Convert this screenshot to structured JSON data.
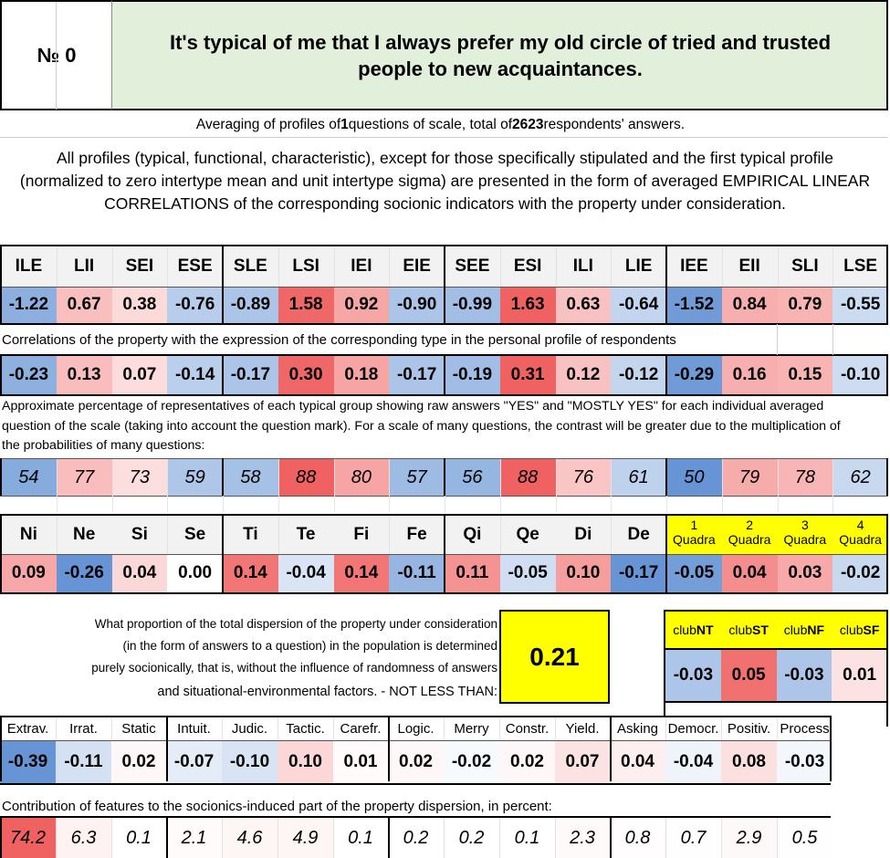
{
  "header": {
    "number_label": "№ 0",
    "question": "It's typical of me that I always prefer my old circle of tried and trusted people to new acquaintances."
  },
  "averaging": {
    "prefix": "Averaging of profiles of ",
    "questions": "1",
    "middle": " questions of scale, total of ",
    "respondents": "2623",
    "suffix": " respondents' answers."
  },
  "description": "All profiles (typical, functional, characteristic), except for those specifically stipulated and the first typical profile (normalized to zero intertype mean and unit intertype sigma) are presented in the form of averaged EMPIRICAL LINEAR CORRELATIONS of the corresponding socionic indicators with the property under consideration.",
  "types": {
    "labels": [
      "ILE",
      "LII",
      "SEI",
      "ESE",
      "SLE",
      "LSI",
      "IEI",
      "EIE",
      "SEE",
      "ESI",
      "ILI",
      "LIE",
      "IEE",
      "EII",
      "SLI",
      "LSE"
    ],
    "normalized": [
      "-1.22",
      "0.67",
      "0.38",
      "-0.76",
      "-0.89",
      "1.58",
      "0.92",
      "-0.90",
      "-0.99",
      "1.63",
      "0.63",
      "-0.64",
      "-1.52",
      "0.84",
      "0.79",
      "-0.55"
    ],
    "correlation_caption": "Correlations of the property with the expression of the corresponding type in the personal profile of respondents",
    "correlations": [
      "-0.23",
      "0.13",
      "0.07",
      "-0.14",
      "-0.17",
      "0.30",
      "0.18",
      "-0.17",
      "-0.19",
      "0.31",
      "0.12",
      "-0.12",
      "-0.29",
      "0.16",
      "0.15",
      "-0.10"
    ],
    "percent_caption": "Approximate percentage of representatives of each typical group showing raw answers \"YES\" and \"MOSTLY YES\" for each individual averaged question of the scale (taking into account the question mark). For a scale of many questions, the contrast will be greater due to the multiplication of the probabilities of many questions:",
    "percentages": [
      "54",
      "77",
      "73",
      "59",
      "58",
      "88",
      "80",
      "57",
      "56",
      "88",
      "76",
      "61",
      "50",
      "79",
      "78",
      "62"
    ]
  },
  "functions": {
    "labels": [
      "Ni",
      "Ne",
      "Si",
      "Se",
      "Ti",
      "Te",
      "Fi",
      "Fe",
      "Qi",
      "Qe",
      "Di",
      "De"
    ],
    "values": [
      "0.09",
      "-0.26",
      "0.04",
      "0.00",
      "0.14",
      "-0.04",
      "0.14",
      "-0.11",
      "0.11",
      "-0.05",
      "0.10",
      "-0.17"
    ]
  },
  "quadras": {
    "numbers": [
      "1",
      "2",
      "3",
      "4"
    ],
    "word": "Quadra",
    "values": [
      "-0.05",
      "0.04",
      "0.03",
      "-0.02"
    ]
  },
  "dispersion": {
    "text_lines": [
      "What proportion of the total dispersion of the property under consideration",
      "(in the form of answers to a question) in the population is determined",
      "purely socionically, that is, without the influence of randomness of answers",
      "and situational-environmental factors. - NOT LESS THAN:"
    ],
    "value": "0.21"
  },
  "clubs": {
    "prefix": "club",
    "names": [
      "NT",
      "ST",
      "NF",
      "SF"
    ],
    "values": [
      "-0.03",
      "0.05",
      "-0.03",
      "0.01"
    ]
  },
  "traits": {
    "labels": [
      "Extrav.",
      "Irrat.",
      "Static",
      "Intuit.",
      "Judic.",
      "Tactic.",
      "Carefr.",
      "Logic.",
      "Merry",
      "Constr.",
      "Yield.",
      "Asking",
      "Democr.",
      "Positiv.",
      "Process"
    ],
    "values": [
      "-0.39",
      "-0.11",
      "0.02",
      "-0.07",
      "-0.10",
      "0.10",
      "0.01",
      "0.02",
      "-0.02",
      "0.02",
      "0.07",
      "0.04",
      "-0.04",
      "0.08",
      "-0.03"
    ],
    "contribution_caption": "Contribution of features to the socionics-induced part of the property dispersion, in percent:",
    "contributions": [
      "74.2",
      "6.3",
      "0.1",
      "2.1",
      "4.6",
      "4.9",
      "0.1",
      "0.2",
      "0.2",
      "0.1",
      "2.3",
      "0.8",
      "0.7",
      "2.9",
      "0.5"
    ]
  },
  "colors": {
    "question_bg": "#e2efda",
    "highlight_yellow": "#ffff00",
    "header_gray": "#f2f2f2"
  }
}
